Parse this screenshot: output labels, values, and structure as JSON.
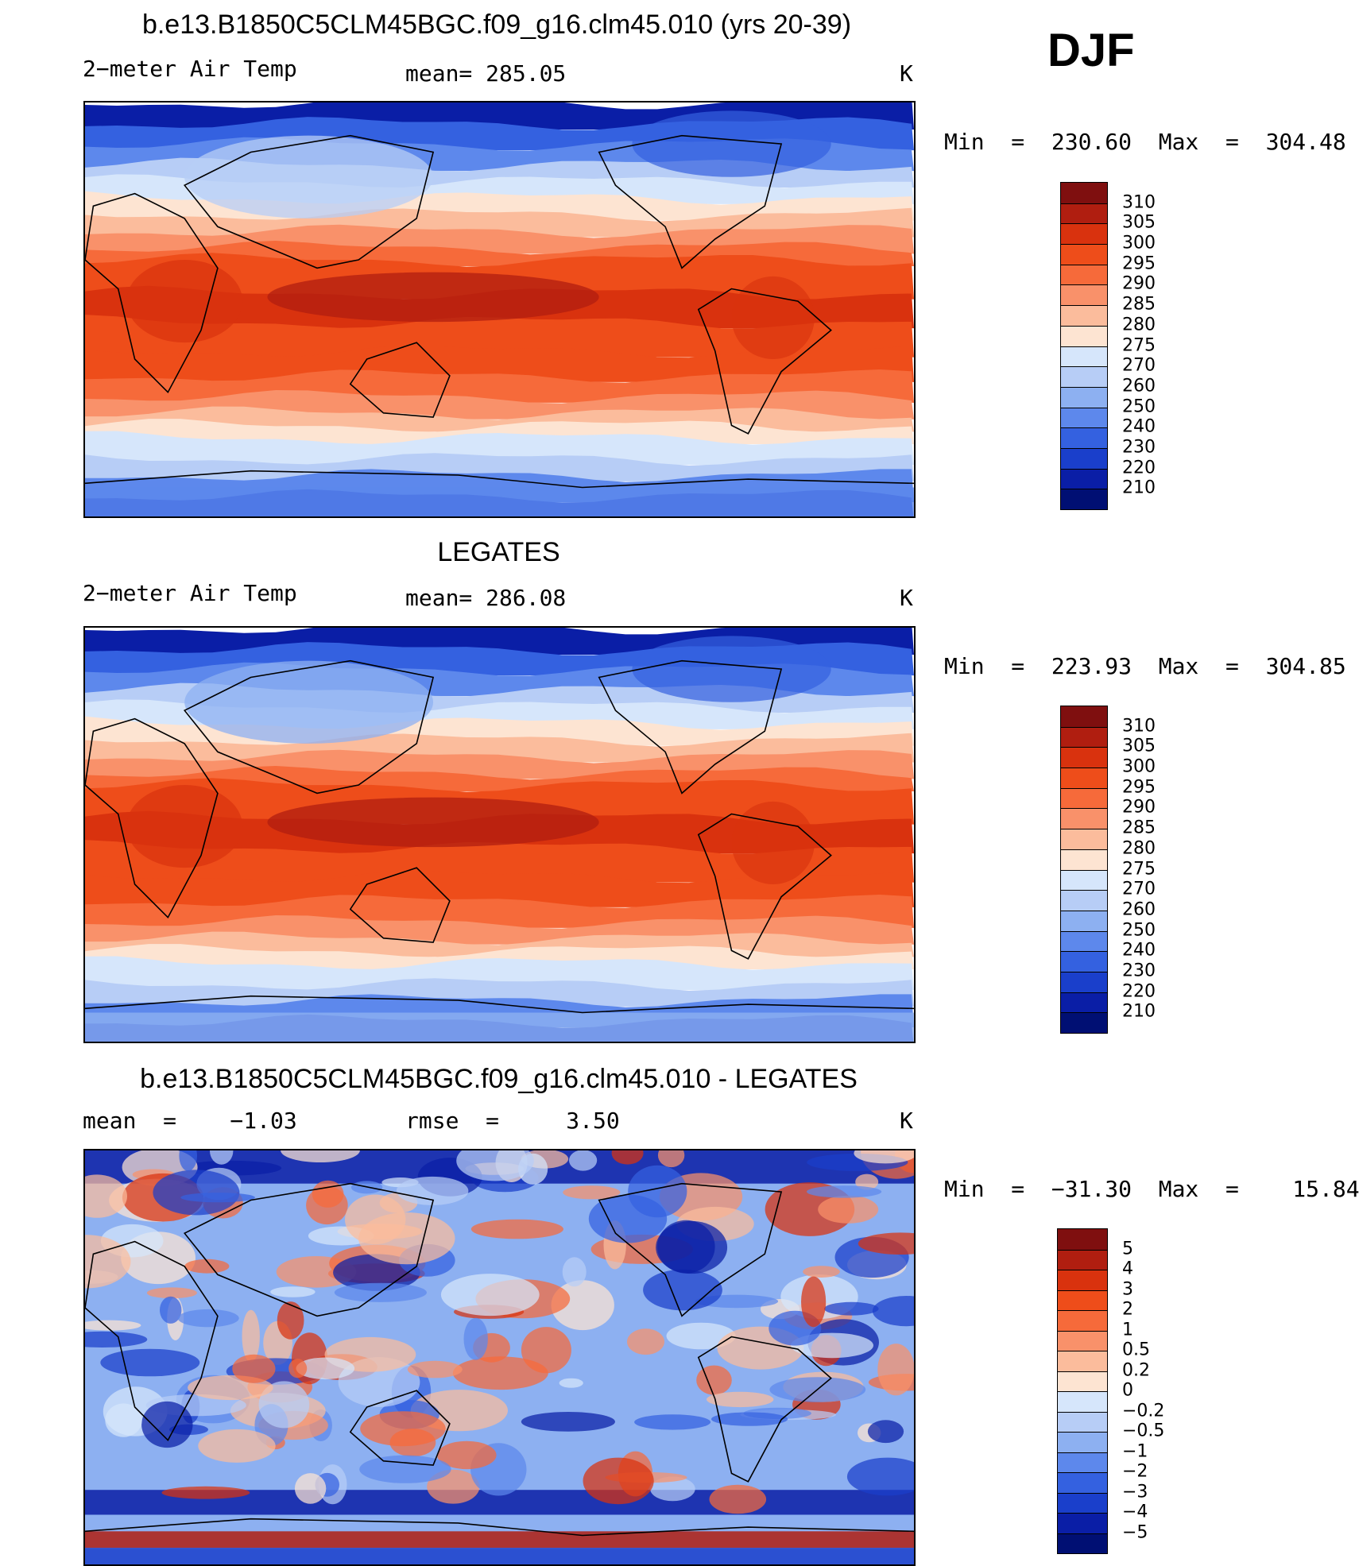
{
  "season": "DJF",
  "units": "K",
  "panels": [
    {
      "title": "b.e13.B1850C5CLM45BGC.f09_g16.clm45.010 (yrs 20-39)",
      "left_text": "2−meter Air Temp",
      "center_text": "mean= 285.05",
      "right_text": "K",
      "minmax": "Min  =  230.60  Max  =  304.48",
      "colorbar": {
        "labels": [
          "310",
          "305",
          "300",
          "295",
          "290",
          "285",
          "280",
          "275",
          "270",
          "260",
          "250",
          "240",
          "230",
          "220",
          "210"
        ],
        "colors": [
          "#7f0f0f",
          "#b01e10",
          "#d9320e",
          "#ee4d1a",
          "#f66a3a",
          "#f9916a",
          "#fbbc9c",
          "#fde4d2",
          "#d6e6fb",
          "#b7cdf6",
          "#8db0f1",
          "#5d88ec",
          "#3461e0",
          "#1a3fcb",
          "#0a1ea6",
          "#000f73"
        ]
      }
    },
    {
      "title": "LEGATES",
      "left_text": "2−meter Air Temp",
      "center_text": "mean= 286.08",
      "right_text": "K",
      "minmax": "Min  =  223.93  Max  =  304.85",
      "colorbar": {
        "labels": [
          "310",
          "305",
          "300",
          "295",
          "290",
          "285",
          "280",
          "275",
          "270",
          "260",
          "250",
          "240",
          "230",
          "220",
          "210"
        ],
        "colors": [
          "#7f0f0f",
          "#b01e10",
          "#d9320e",
          "#ee4d1a",
          "#f66a3a",
          "#f9916a",
          "#fbbc9c",
          "#fde4d2",
          "#d6e6fb",
          "#b7cdf6",
          "#8db0f1",
          "#5d88ec",
          "#3461e0",
          "#1a3fcb",
          "#0a1ea6",
          "#000f73"
        ]
      }
    },
    {
      "title": "b.e13.B1850C5CLM45BGC.f09_g16.clm45.010 - LEGATES",
      "left_text": "mean  =    −1.03",
      "center_text": "rmse  =     3.50",
      "right_text": "K",
      "minmax": "Min  =  −31.30  Max  =    15.84",
      "colorbar": {
        "labels": [
          "5",
          "4",
          "3",
          "2",
          "1",
          "0.5",
          "0.2",
          "0",
          "−0.2",
          "−0.5",
          "−1",
          "−2",
          "−3",
          "−4",
          "−5"
        ],
        "colors": [
          "#7f0f0f",
          "#b01e10",
          "#d9320e",
          "#ee4d1a",
          "#f66a3a",
          "#f9916a",
          "#fbbc9c",
          "#fde4d2",
          "#d6e6fb",
          "#b7cdf6",
          "#8db0f1",
          "#5d88ec",
          "#3461e0",
          "#1a3fcb",
          "#0a1ea6",
          "#000f73"
        ]
      }
    }
  ]
}
